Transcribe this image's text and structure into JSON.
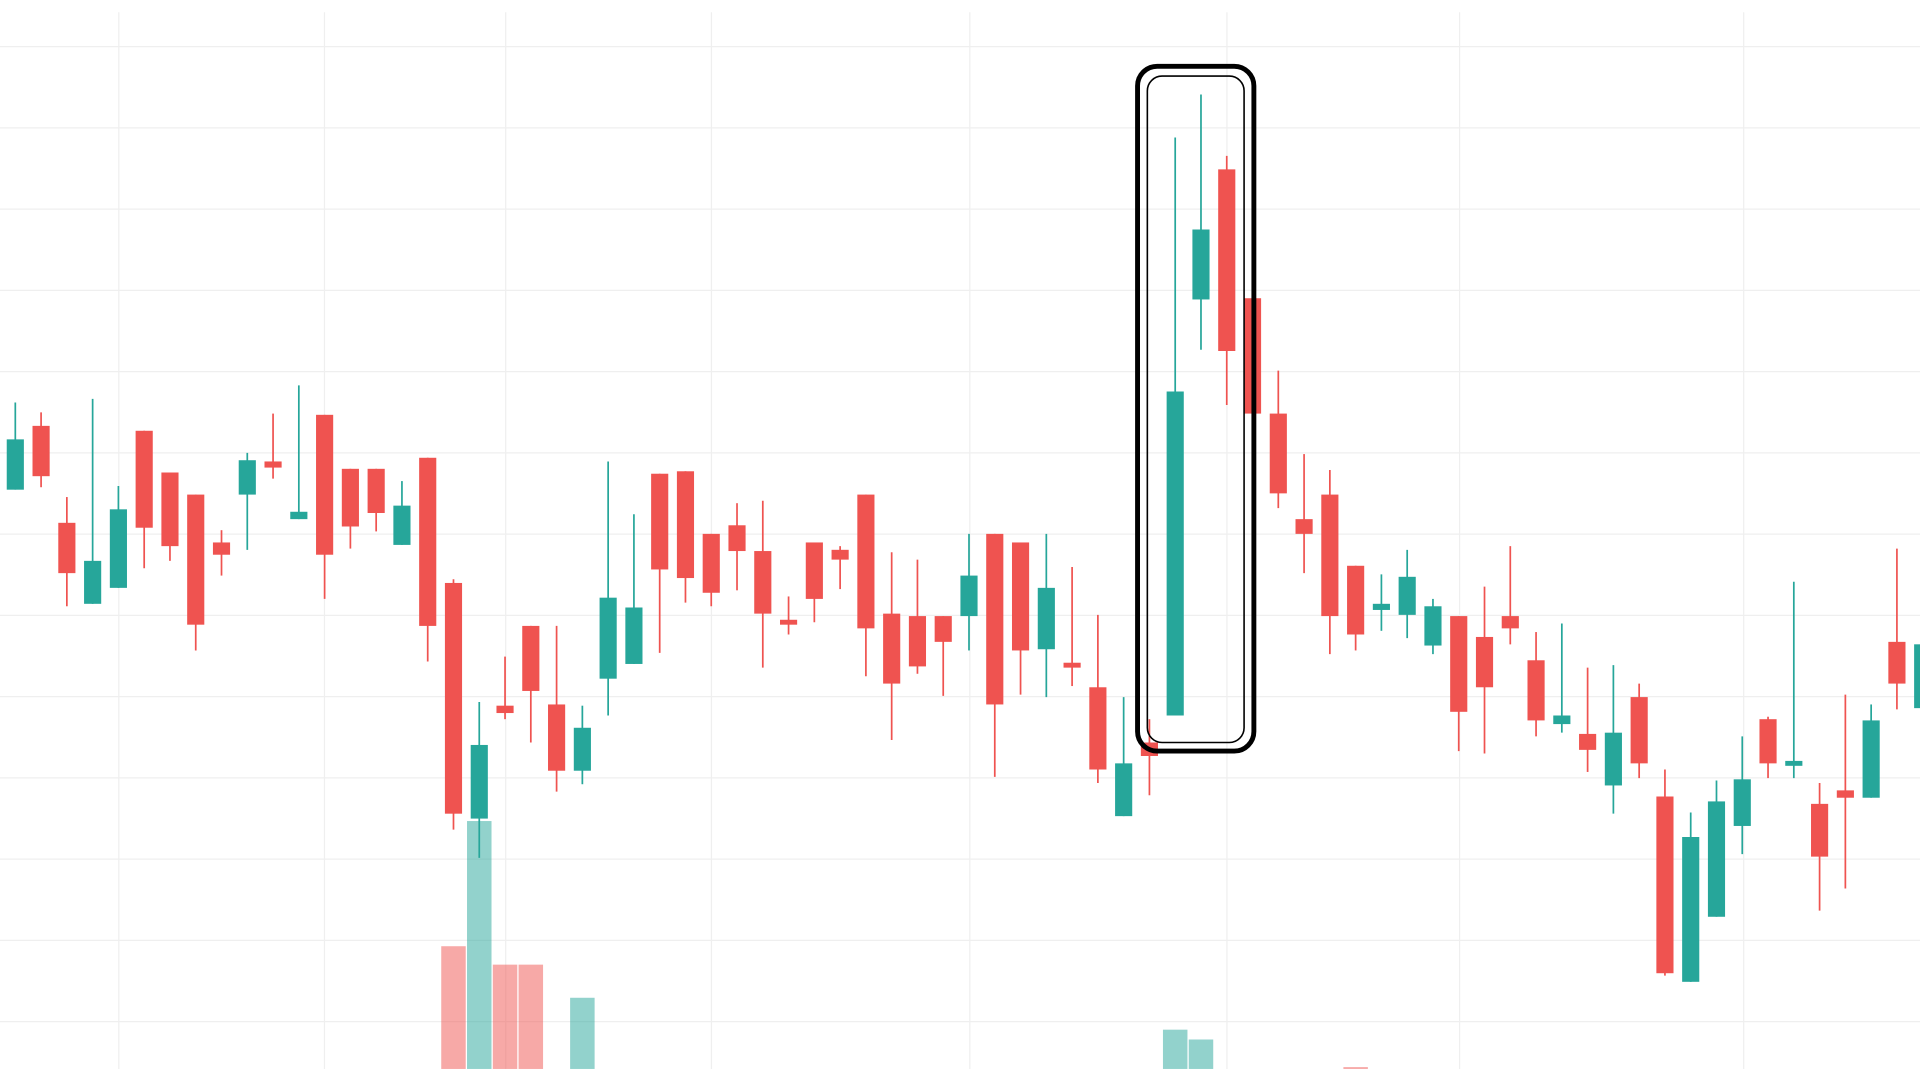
{
  "chart_data": {
    "type": "candlestick",
    "title": "",
    "xlabel": "",
    "ylabel": "",
    "grid": true,
    "ylim": [
      0,
      88
    ],
    "colors": {
      "up": "#26a69a",
      "down": "#ef5350",
      "grid": "#efefef",
      "highlight": "#000000"
    },
    "ohlc": [
      [
        48.1,
        55.2,
        48.1,
        52.2
      ],
      [
        53.3,
        54.4,
        48.3,
        49.2
      ],
      [
        45.4,
        47.5,
        38.6,
        41.3
      ],
      [
        38.8,
        55.5,
        38.8,
        42.3
      ],
      [
        40.1,
        48.4,
        40.1,
        46.5
      ],
      [
        52.9,
        52.9,
        41.7,
        45.0
      ],
      [
        49.5,
        49.5,
        42.3,
        43.5
      ],
      [
        47.7,
        47.7,
        35.0,
        37.1
      ],
      [
        43.8,
        44.8,
        41.1,
        42.8
      ],
      [
        47.7,
        51.1,
        43.2,
        50.5
      ],
      [
        50.4,
        54.3,
        49.0,
        49.9
      ],
      [
        45.7,
        56.6,
        45.7,
        46.3
      ],
      [
        54.2,
        54.2,
        39.2,
        42.8
      ],
      [
        49.8,
        49.8,
        43.3,
        45.1
      ],
      [
        49.8,
        49.8,
        44.7,
        46.2
      ],
      [
        43.6,
        48.8,
        43.6,
        46.8
      ],
      [
        50.7,
        50.7,
        34.1,
        37.0
      ],
      [
        40.5,
        40.8,
        20.4,
        21.7
      ],
      [
        21.3,
        30.8,
        18.1,
        27.3
      ],
      [
        30.5,
        34.5,
        29.4,
        29.9
      ],
      [
        37.0,
        37.0,
        27.5,
        31.7
      ],
      [
        30.6,
        37.0,
        23.5,
        25.2
      ],
      [
        25.2,
        30.5,
        24.1,
        28.7
      ],
      [
        32.7,
        50.4,
        29.7,
        39.3
      ],
      [
        33.9,
        46.1,
        33.9,
        38.5
      ],
      [
        49.4,
        49.4,
        34.8,
        41.6
      ],
      [
        49.6,
        49.6,
        38.9,
        40.9
      ],
      [
        44.5,
        44.5,
        38.6,
        39.7
      ],
      [
        45.2,
        47.0,
        39.9,
        43.1
      ],
      [
        43.1,
        47.2,
        33.6,
        38.0
      ],
      [
        37.5,
        39.4,
        36.3,
        37.1
      ],
      [
        43.8,
        43.8,
        37.3,
        39.2
      ],
      [
        43.2,
        43.5,
        40.0,
        42.4
      ],
      [
        47.7,
        47.7,
        32.9,
        36.8
      ],
      [
        38.0,
        43.0,
        27.7,
        32.3
      ],
      [
        37.8,
        42.4,
        33.1,
        33.7
      ],
      [
        37.8,
        37.8,
        31.3,
        35.7
      ],
      [
        37.8,
        44.5,
        35.0,
        41.1
      ],
      [
        44.5,
        44.5,
        24.7,
        30.6
      ],
      [
        43.8,
        43.8,
        31.4,
        35.0
      ],
      [
        35.1,
        44.5,
        31.2,
        40.1
      ],
      [
        34.0,
        41.8,
        32.1,
        33.7
      ],
      [
        32.0,
        37.9,
        24.2,
        25.3
      ],
      [
        21.5,
        31.2,
        21.5,
        25.8
      ],
      [
        27.5,
        29.4,
        23.2,
        26.4
      ],
      [
        29.7,
        76.8,
        29.7,
        56.1
      ],
      [
        63.6,
        80.3,
        59.5,
        69.3
      ],
      [
        74.2,
        75.3,
        55.0,
        59.4
      ],
      [
        63.7,
        63.7,
        54.3,
        54.3
      ],
      [
        54.3,
        57.8,
        46.6,
        47.8
      ],
      [
        45.7,
        51.0,
        41.3,
        44.5
      ],
      [
        47.7,
        49.7,
        34.7,
        37.8
      ],
      [
        41.9,
        41.9,
        35.0,
        36.3
      ],
      [
        38.3,
        41.2,
        36.6,
        38.8
      ],
      [
        37.9,
        43.2,
        36.0,
        41.0
      ],
      [
        35.4,
        39.2,
        34.7,
        38.6
      ],
      [
        37.8,
        37.8,
        26.8,
        30.0
      ],
      [
        36.1,
        40.2,
        26.6,
        32.0
      ],
      [
        37.8,
        43.5,
        35.5,
        36.8
      ],
      [
        34.2,
        36.5,
        28.0,
        29.3
      ],
      [
        29.0,
        37.2,
        28.3,
        29.7
      ],
      [
        28.2,
        33.6,
        25.1,
        26.9
      ],
      [
        24.0,
        33.8,
        21.7,
        28.3
      ],
      [
        31.2,
        32.3,
        24.6,
        25.8
      ],
      [
        23.1,
        25.3,
        8.5,
        8.7
      ],
      [
        8.0,
        21.8,
        8.0,
        19.8
      ],
      [
        13.3,
        24.4,
        13.3,
        22.7
      ],
      [
        20.7,
        28.0,
        18.4,
        24.5
      ],
      [
        29.4,
        29.6,
        24.6,
        25.8
      ],
      [
        25.7,
        40.6,
        24.6,
        26.0
      ],
      [
        22.5,
        24.2,
        13.8,
        18.2
      ],
      [
        23.6,
        31.4,
        15.6,
        23.0
      ],
      [
        23.0,
        30.6,
        23.0,
        29.3
      ],
      [
        35.7,
        43.3,
        30.2,
        32.3
      ],
      [
        30.3,
        35.5,
        30.3,
        35.5
      ]
    ],
    "volume": [
      0,
      0,
      0,
      0,
      0,
      0,
      0,
      0,
      0,
      0,
      0,
      0,
      0,
      0,
      0,
      0,
      0,
      50,
      101,
      42.5,
      42.5,
      0,
      29,
      0,
      0,
      0,
      0,
      0,
      0,
      0,
      0,
      0,
      0,
      0,
      0,
      0,
      0,
      0,
      0,
      0,
      0,
      0,
      0,
      0,
      0,
      16,
      12,
      0,
      0,
      0,
      0,
      0,
      0.5,
      0,
      0,
      0,
      0,
      0,
      0,
      0,
      0,
      0,
      0,
      0,
      0,
      0,
      0,
      0,
      0,
      0,
      0,
      0,
      0,
      0,
      0
    ],
    "highlight": {
      "start_index": 45,
      "end_index": 47
    }
  }
}
